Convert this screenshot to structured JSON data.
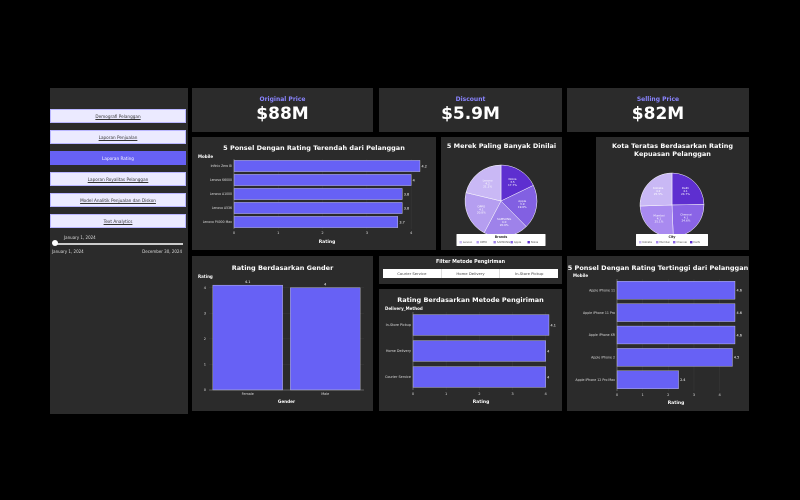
{
  "sidebar": {
    "nav": [
      {
        "label": "Demografi Pelanggan",
        "active": false
      },
      {
        "label": "Laporan Penjualan",
        "active": false
      },
      {
        "label": "Laporan Rating",
        "active": true
      },
      {
        "label": "Laporan Royalitas Pelanggan",
        "active": false
      },
      {
        "label": "Model Analitik Penjualan dan Diskon",
        "active": false
      },
      {
        "label": "Text Analytics",
        "active": false
      }
    ],
    "date_slider": {
      "current": "January 1, 2024",
      "min": "January 1, 2024",
      "max": "December 30, 2024"
    }
  },
  "kpis": [
    {
      "title": "Original Price",
      "value": "$88M"
    },
    {
      "title": "Discount",
      "value": "$5.9M"
    },
    {
      "title": "Selling Price",
      "value": "$82M"
    }
  ],
  "filter": {
    "title": "Filter Metode Pengiriman",
    "options": [
      "Courier Service",
      "Home Delivery",
      "In-Store Pickup"
    ]
  },
  "colors": {
    "accent": "#6761f5",
    "panel": "#2b2b2b",
    "kpi_title": "#8a84ff"
  },
  "chart_data": [
    {
      "id": "lowest",
      "type": "bar",
      "orientation": "horizontal",
      "title": "5 Ponsel Dengan Rating Terendah dari Pelanggan",
      "ylabel": "Mobile",
      "xlabel": "Rating",
      "categories": [
        "Infinix Zero 8i",
        "Lenovo K6000",
        "Lenovo A1000",
        "Lenovo A536",
        "Lenovo P4000 Max"
      ],
      "values": [
        4.2,
        4.0,
        3.8,
        3.8,
        3.7
      ],
      "value_labels": [
        "4.2",
        "4",
        "3.8",
        "3.8",
        "3.7"
      ],
      "xlim": [
        0,
        4.2
      ],
      "xticks": [
        "0",
        "1",
        "2",
        "3",
        "4"
      ]
    },
    {
      "id": "brands",
      "type": "pie",
      "title": "5 Merek Paling Banyak Dinilai",
      "legend_title": "Brands",
      "labels": [
        "Lenovo",
        "OPPO",
        "SAMSUNG",
        "Apple",
        "Nokia"
      ],
      "values": [
        21.1,
        20.8,
        20.0,
        19.6,
        17.7
      ],
      "slice_text": [
        {
          "name": "Nokia",
          "value": "3.5",
          "pct": "17.7%"
        },
        {
          "name": "Apple",
          "value": "3.9",
          "pct": "19.6%"
        },
        {
          "name": "SAMSUNG",
          "value": "4.0",
          "pct": "20.0%"
        },
        {
          "name": "OPPO",
          "value": "4.1",
          "pct": "20.8%"
        },
        {
          "name": "Lenovo",
          "value": "4.2",
          "pct": "21.1%"
        }
      ],
      "colors": [
        "#c9b8f5",
        "#b59ef0",
        "#9e82ea",
        "#8260e2",
        "#5e2fd0"
      ],
      "legend": "bottom"
    },
    {
      "id": "cities",
      "type": "pie",
      "title": "Kota Teratas Berdasarkan Rating Kepuasan Pelanggan",
      "legend_title": "City",
      "labels": [
        "Kolkata",
        "Mumbai",
        "Chennai",
        "Delhi"
      ],
      "values": [
        25.5,
        25.1,
        24.6,
        24.7
      ],
      "slice_text": [
        {
          "name": "Delhi",
          "value": "4.1",
          "pct": "24.7%"
        },
        {
          "name": "Chennai",
          "value": "4.1",
          "pct": "24.6%"
        },
        {
          "name": "Mumbai",
          "value": "4.1",
          "pct": "25.1%"
        },
        {
          "name": "Kolkata",
          "value": "4.2",
          "pct": "25.5%"
        }
      ],
      "colors": [
        "#c9b8f5",
        "#a98af0",
        "#8a64e6",
        "#5e2fd0"
      ],
      "legend": "bottom"
    },
    {
      "id": "gender",
      "type": "bar",
      "orientation": "vertical",
      "title": "Rating Berdasarkan Gender",
      "ylabel": "Rating",
      "xlabel": "Gender",
      "categories": [
        "Female",
        "Male"
      ],
      "values": [
        4.1,
        4.0
      ],
      "value_labels": [
        "4.1",
        "4"
      ],
      "ylim": [
        0,
        4.3
      ],
      "yticks": [
        "0",
        "1",
        "2",
        "3",
        "4"
      ]
    },
    {
      "id": "delivery",
      "type": "bar",
      "orientation": "horizontal",
      "title": "Rating Berdasarkan Metode Pengiriman",
      "ylabel": "Delivery_Method",
      "xlabel": "Rating",
      "categories": [
        "In-Store Pickup",
        "Home Delivery",
        "Courier Service"
      ],
      "values": [
        4.1,
        4.0,
        4.0
      ],
      "value_labels": [
        "4.1",
        "4",
        "4"
      ],
      "xlim": [
        0,
        4.1
      ],
      "xticks": [
        "0",
        "1",
        "2",
        "3",
        "4"
      ]
    },
    {
      "id": "highest",
      "type": "bar",
      "orientation": "horizontal",
      "title": "5 Ponsel Dengan Rating Tertinggi dari Pelanggan",
      "ylabel": "Mobile",
      "xlabel": "Rating",
      "categories": [
        "Apple iPhone 11",
        "Apple iPhone 11 Pro",
        "Apple iPhone XR",
        "Apple iPhone 2",
        "Apple iPhone 12 Pro Max"
      ],
      "values": [
        4.6,
        4.6,
        4.6,
        4.5,
        2.4
      ],
      "value_labels": [
        "4.6",
        "4.6",
        "4.6",
        "4.5",
        "2.4"
      ],
      "xlim": [
        0,
        4.6
      ],
      "xticks": [
        "0",
        "1",
        "2",
        "3",
        "4"
      ]
    }
  ]
}
